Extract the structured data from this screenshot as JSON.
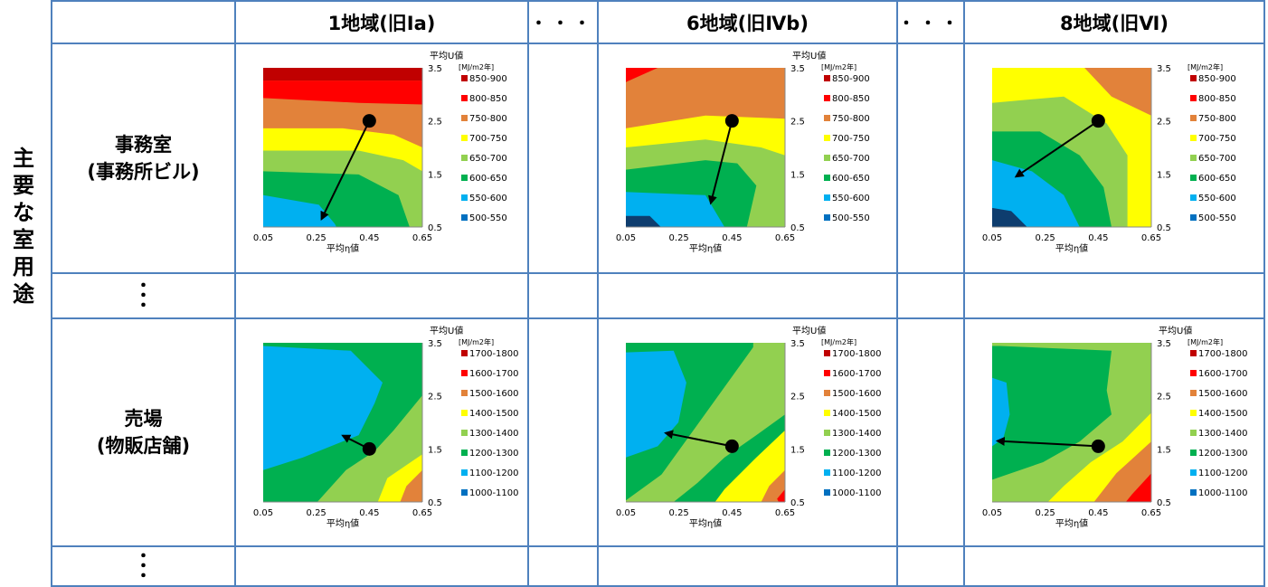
{
  "side_label": [
    "主",
    "要",
    "な",
    "室",
    "用",
    "途"
  ],
  "headers": {
    "zone1": "1地域(旧Ⅰa)",
    "dots1": "・・・",
    "zone6": "6地域(旧Ⅳb)",
    "dots2": "・・・",
    "zone8": "8地域(旧Ⅵ)"
  },
  "rows": {
    "office_line1": "事務室",
    "office_line2": "(事務所ビル)",
    "shop_line1": "売場",
    "shop_line2": "(物販店舗)",
    "vdots": "・"
  },
  "chart_data": [
    {
      "type": "heatmap",
      "id": "office-z1",
      "ylabel": "平均U値",
      "xlabel": "平均η値",
      "unit": "[MJ/m2年]",
      "legend": [
        "850-900",
        "800-850",
        "750-800",
        "700-750",
        "650-700",
        "600-650",
        "550-600",
        "500-550"
      ],
      "x_ticks": [
        "0.05",
        "0.25",
        "0.45",
        "0.65"
      ],
      "y_ticks": [
        "3.5",
        "2.5",
        "1.5",
        "0.5"
      ],
      "xlim": [
        0.05,
        0.65
      ],
      "ylim": [
        0.5,
        3.5
      ],
      "arrow": {
        "from": [
          0.45,
          2.5
        ],
        "to": [
          0.27,
          0.65
        ]
      }
    },
    {
      "type": "heatmap",
      "id": "office-z6",
      "ylabel": "平均U値",
      "xlabel": "平均η値",
      "unit": "[MJ/m2年]",
      "legend": [
        "850-900",
        "800-850",
        "750-800",
        "700-750",
        "650-700",
        "600-650",
        "550-600",
        "500-550"
      ],
      "x_ticks": [
        "0.05",
        "0.25",
        "0.45",
        "0.65"
      ],
      "y_ticks": [
        "3.5",
        "2.5",
        "1.5",
        "0.5"
      ],
      "xlim": [
        0.05,
        0.65
      ],
      "ylim": [
        0.5,
        3.5
      ],
      "arrow": {
        "from": [
          0.45,
          2.5
        ],
        "to": [
          0.37,
          0.95
        ]
      }
    },
    {
      "type": "heatmap",
      "id": "office-z8",
      "ylabel": "",
      "xlabel": "平均η値",
      "unit": "[MJ/m2年]",
      "legend": [
        "850-900",
        "800-850",
        "750-800",
        "700-750",
        "650-700",
        "600-650",
        "550-600",
        "500-550"
      ],
      "x_ticks": [
        "0.05",
        "0.25",
        "0.45",
        "0.65"
      ],
      "y_ticks": [
        "3.5",
        "2.5",
        "1.5",
        "0.5"
      ],
      "xlim": [
        0.05,
        0.65
      ],
      "ylim": [
        0.5,
        3.5
      ],
      "arrow": {
        "from": [
          0.45,
          2.5
        ],
        "to": [
          0.14,
          1.45
        ]
      }
    },
    {
      "type": "heatmap",
      "id": "shop-z1",
      "ylabel": "平均U値",
      "xlabel": "平均η値",
      "unit": "[MJ/m2年]",
      "legend": [
        "1700-1800",
        "1600-1700",
        "1500-1600",
        "1400-1500",
        "1300-1400",
        "1200-1300",
        "1100-1200",
        "1000-1100"
      ],
      "x_ticks": [
        "0.05",
        "0.25",
        "0.45",
        "0.65"
      ],
      "y_ticks": [
        "3.5",
        "2.5",
        "1.5",
        "0.5"
      ],
      "xlim": [
        0.05,
        0.65
      ],
      "ylim": [
        0.5,
        3.5
      ],
      "arrow": {
        "from": [
          0.45,
          1.5
        ],
        "to": [
          0.35,
          1.75
        ]
      }
    },
    {
      "type": "heatmap",
      "id": "shop-z6",
      "ylabel": "平均U値",
      "xlabel": "平均η値",
      "unit": "[MJ/m2年]",
      "legend": [
        "1700-1800",
        "1600-1700",
        "1500-1600",
        "1400-1500",
        "1300-1400",
        "1200-1300",
        "1100-1200",
        "1000-1100"
      ],
      "x_ticks": [
        "0.05",
        "0.25",
        "0.45",
        "0.65"
      ],
      "y_ticks": [
        "3.5",
        "2.5",
        "1.5",
        "0.5"
      ],
      "xlim": [
        0.05,
        0.65
      ],
      "ylim": [
        0.5,
        3.5
      ],
      "arrow": {
        "from": [
          0.45,
          1.55
        ],
        "to": [
          0.2,
          1.8
        ]
      }
    },
    {
      "type": "heatmap",
      "id": "shop-z8",
      "ylabel": "平均U値",
      "xlabel": "平均η値",
      "unit": "[MJ/m2年]",
      "legend": [
        "1700-1800",
        "1600-1700",
        "1500-1600",
        "1400-1500",
        "1300-1400",
        "1200-1300",
        "1100-1200",
        "1000-1100"
      ],
      "x_ticks": [
        "0.05",
        "0.25",
        "0.45",
        "0.65"
      ],
      "y_ticks": [
        "3.5",
        "2.5",
        "1.5",
        "0.5"
      ],
      "xlim": [
        0.05,
        0.65
      ],
      "ylim": [
        0.5,
        3.5
      ],
      "arrow": {
        "from": [
          0.45,
          1.55
        ],
        "to": [
          0.07,
          1.65
        ]
      }
    }
  ],
  "colors": [
    "#c00000",
    "#ff0000",
    "#e2823a",
    "#ffff00",
    "#92d050",
    "#00b050",
    "#00b0f0",
    "#0070c0"
  ],
  "dark_blue": "#0e3d6e"
}
